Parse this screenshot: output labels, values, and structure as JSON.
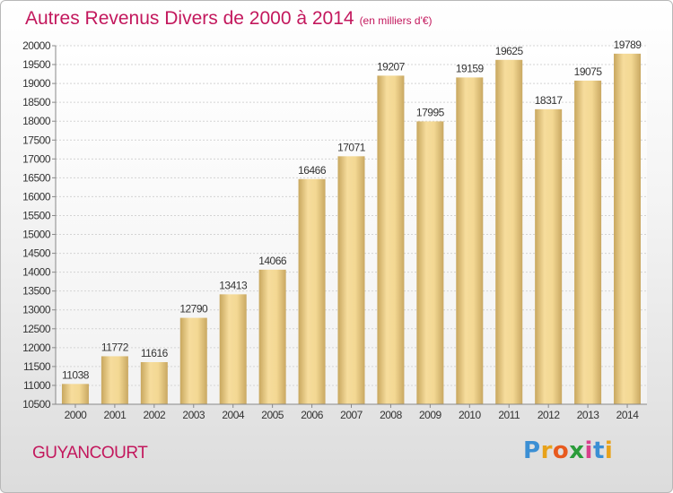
{
  "header": {
    "title": "Autres Revenus Divers de 2000 à 2014",
    "subtitle": "(en milliers d'€)"
  },
  "footer": {
    "city": "GUYANCOURT",
    "logo_letters": [
      "P",
      "r",
      "o",
      "x",
      "i",
      "t",
      "i"
    ],
    "logo_colors": [
      "#3b8fd4",
      "#e8a21a",
      "#e85a1e",
      "#2a9c3a",
      "#d83f8c",
      "#3b8fd4",
      "#e8a21a"
    ]
  },
  "chart_data": {
    "type": "bar",
    "title": "Autres Revenus Divers de 2000 à 2014",
    "subtitle": "(en milliers d'€)",
    "categories": [
      "2000",
      "2001",
      "2002",
      "2003",
      "2004",
      "2005",
      "2006",
      "2007",
      "2008",
      "2009",
      "2010",
      "2011",
      "2012",
      "2013",
      "2014"
    ],
    "values": [
      11038,
      11772,
      11616,
      12790,
      13413,
      14066,
      16466,
      17071,
      19207,
      17995,
      19159,
      19625,
      18317,
      19075,
      19789
    ],
    "value_labels": [
      "11038",
      "11772",
      "11616",
      "12790",
      "13413",
      "14066",
      "16466",
      "17071",
      "19207",
      "17995",
      "19159",
      "19625",
      "18317",
      "19075",
      "19789"
    ],
    "ylim": [
      10500,
      20000
    ],
    "yticks": [
      "10500",
      "11000",
      "11500",
      "12000",
      "12500",
      "13000",
      "13500",
      "14000",
      "14500",
      "15000",
      "15500",
      "16000",
      "16500",
      "17000",
      "17500",
      "18000",
      "18500",
      "19000",
      "19500",
      "20000"
    ],
    "grid": true,
    "bar_color": "#e6c679"
  }
}
